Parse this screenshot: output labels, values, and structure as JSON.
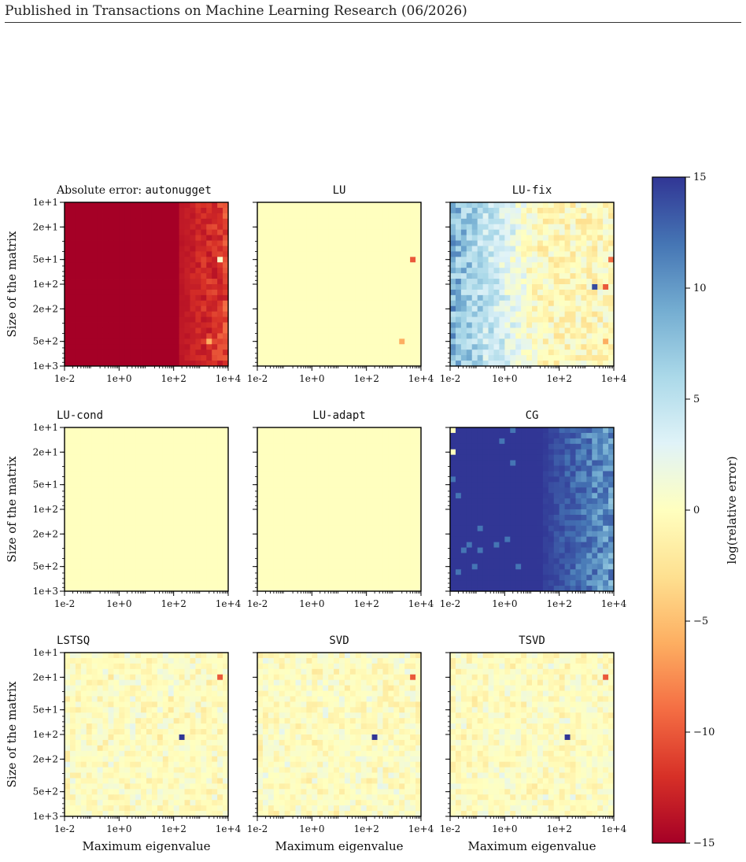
{
  "page_header": {
    "text": "Published in Transactions on Machine Learning Research (06/2026)"
  },
  "figure": {
    "y_axis_title": "Size of the matrix",
    "x_axis_title": "Maximum eigenvalue",
    "colorbar_label": "log(relative error)",
    "colorbar_ticks": [
      "15",
      "10",
      "5",
      "0",
      "−5",
      "−10",
      "−15"
    ],
    "colorbar_range": [
      -15,
      15
    ],
    "x_tick_labels": [
      "1e-2",
      "1e+0",
      "1e+2",
      "1e+4"
    ],
    "y_tick_labels": [
      "1e+1",
      "2e+1",
      "5e+1",
      "1e+2",
      "2e+2",
      "5e+2",
      "1e+3"
    ],
    "grid": "off",
    "colormap": "RdYlBu"
  },
  "chart_data": [
    {
      "type": "heatmap",
      "title_prefix": "Absolute error: ",
      "title": "autonugget",
      "x": [
        "1e-2",
        "1e+4"
      ],
      "y": [
        "1e+1",
        "1e+3"
      ],
      "value_description": "log error near -15 across most of grid; rises toward -12..-8 for max eigenvalue above ~1e+2",
      "typical_value": -15,
      "high_eigen_value_range": [
        -13,
        -8
      ],
      "outliers": [
        {
          "x": "5e+3",
          "y": "5e+1",
          "value": 0.5
        },
        {
          "x": "3e+3",
          "y": "5e+2",
          "value": -6
        }
      ]
    },
    {
      "type": "heatmap",
      "title": "LU",
      "typical_value": 0,
      "outliers": [
        {
          "x": "6e+3",
          "y": "5e+1",
          "value": -10
        },
        {
          "x": "3e+3",
          "y": "5e+2",
          "value": -6
        }
      ]
    },
    {
      "type": "heatmap",
      "title": "LU-fix",
      "value_description": "log error about 6..12 at small max eigenvalue, decreasing to about 0..-3 above 1e+1",
      "low_eigen_value_range": [
        5,
        12
      ],
      "high_eigen_value_range": [
        -3,
        2
      ],
      "outliers": [
        {
          "x": "3e+3",
          "y": "1e+2",
          "value": 14
        },
        {
          "x": "6e+3",
          "y": "1e+2",
          "value": -10
        },
        {
          "x": "8e+3",
          "y": "5e+1",
          "value": -9
        },
        {
          "x": "5e+3",
          "y": "5e+2",
          "value": -6
        }
      ]
    },
    {
      "type": "heatmap",
      "title": "LU-cond",
      "typical_value": 0
    },
    {
      "type": "heatmap",
      "title": "LU-adapt",
      "typical_value": 0
    },
    {
      "type": "heatmap",
      "title": "CG",
      "value_description": "log error near 15 for most of grid; decreases to about 8..12 for max eigenvalue above ~1e+2",
      "typical_value": 15,
      "high_eigen_value_range": [
        7,
        13
      ],
      "outliers": [
        {
          "x": "1e-2",
          "y": "1e+1",
          "value": 0
        },
        {
          "x": "1e-2",
          "y": "2e+1",
          "value": 0
        }
      ]
    },
    {
      "type": "heatmap",
      "title": "LSTSQ",
      "value_description": "log error scattered around 0 (about -4..4)",
      "typical_range": [
        -4,
        4
      ],
      "outliers": [
        {
          "x": "2e+2",
          "y": "1e+2",
          "value": 15
        },
        {
          "x": "5e+3",
          "y": "2e+1",
          "value": -10
        }
      ]
    },
    {
      "type": "heatmap",
      "title": "SVD",
      "value_description": "log error scattered around 0 (about -4..4)",
      "typical_range": [
        -4,
        4
      ],
      "outliers": [
        {
          "x": "2e+2",
          "y": "1e+2",
          "value": 15
        },
        {
          "x": "5e+3",
          "y": "2e+1",
          "value": -10
        }
      ]
    },
    {
      "type": "heatmap",
      "title": "TSVD",
      "value_description": "log error scattered around 0 (about -4..4)",
      "typical_range": [
        -4,
        4
      ],
      "outliers": [
        {
          "x": "2e+2",
          "y": "1e+2",
          "value": 15
        },
        {
          "x": "5e+3",
          "y": "2e+1",
          "value": -10
        }
      ]
    }
  ]
}
